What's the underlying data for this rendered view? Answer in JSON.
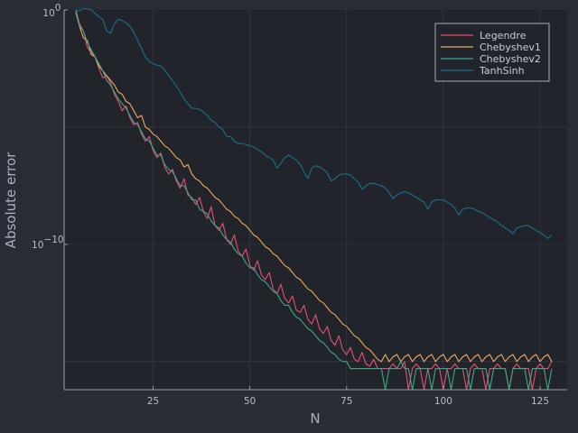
{
  "chart_data": {
    "type": "line",
    "xlabel": "N",
    "ylabel": "Absolute error",
    "xlim": [
      2,
      132
    ],
    "y_scale": "log10",
    "ylim_log10": [
      -16.2,
      0
    ],
    "x_ticks": [
      25,
      50,
      75,
      100,
      125
    ],
    "x_tick_labels": [
      "25",
      "50",
      "75",
      "100",
      "125"
    ],
    "y_ticks_log10": [
      0,
      -10
    ],
    "y_tick_labels": [
      {
        "base": "10",
        "exp": "0"
      },
      {
        "base": "10",
        "exp": "−10"
      }
    ],
    "grid": true,
    "legend_position": "top-right",
    "colors": {
      "background": "#282c34",
      "plot_area": "#21242b",
      "axis": "#9aa0a8",
      "legend_border": "#a8adb5"
    },
    "series": [
      {
        "name": "Legendre",
        "color": "#e8506e",
        "note": "log10 of absolute error",
        "x": [
          5,
          6,
          7,
          8,
          9,
          10,
          11,
          12,
          13,
          14,
          15,
          16,
          17,
          18,
          19,
          20,
          21,
          22,
          23,
          24,
          25,
          26,
          27,
          28,
          29,
          30,
          31,
          32,
          33,
          34,
          35,
          36,
          37,
          38,
          39,
          40,
          41,
          42,
          43,
          44,
          45,
          46,
          47,
          48,
          49,
          50,
          51,
          52,
          53,
          54,
          55,
          56,
          57,
          58,
          59,
          60,
          61,
          62,
          63,
          64,
          65,
          66,
          67,
          68,
          69,
          70,
          71,
          72,
          73,
          74,
          75,
          76,
          77,
          78,
          79,
          80,
          81,
          82,
          83,
          84,
          85,
          86,
          87,
          88,
          89,
          90,
          91,
          92,
          93,
          94,
          95,
          96,
          97,
          98,
          99,
          100,
          101,
          102,
          103,
          104,
          105,
          106,
          107,
          108,
          109,
          110,
          111,
          112,
          113,
          114,
          115,
          116,
          117,
          118,
          119,
          120,
          121,
          122,
          123,
          124,
          125,
          126,
          127,
          128
        ],
        "y": [
          0.0,
          -0.6,
          -0.9,
          -1.6,
          -1.8,
          -2.0,
          -2.5,
          -2.9,
          -2.8,
          -3.1,
          -3.6,
          -3.9,
          -4.3,
          -4.1,
          -4.6,
          -4.9,
          -4.8,
          -5.3,
          -5.6,
          -5.4,
          -6.0,
          -6.3,
          -6.1,
          -6.7,
          -7.0,
          -6.8,
          -7.3,
          -7.6,
          -7.2,
          -7.9,
          -8.0,
          -8.3,
          -8.0,
          -8.6,
          -8.9,
          -8.4,
          -9.2,
          -9.4,
          -9.1,
          -9.8,
          -10.0,
          -9.6,
          -10.3,
          -10.5,
          -10.2,
          -10.9,
          -11.1,
          -10.7,
          -11.3,
          -11.5,
          -11.2,
          -11.9,
          -12.1,
          -11.7,
          -12.3,
          -12.5,
          -12.2,
          -12.8,
          -12.9,
          -12.6,
          -13.2,
          -13.4,
          -13.0,
          -13.6,
          -13.8,
          -13.5,
          -14.1,
          -14.3,
          -13.9,
          -14.5,
          -14.7,
          -14.4,
          -14.9,
          -15.0,
          -14.6,
          -15.1,
          -15.2,
          -14.9,
          -15.3,
          -15.3,
          -15.3,
          -15.3,
          -15.1,
          -15.3,
          -15.3,
          -15.0,
          -16.2,
          -15.3,
          -15.1,
          -15.3,
          -16.2,
          -15.3,
          -15.3,
          -15.1,
          -15.3,
          -16.2,
          -15.3,
          -15.3,
          -15.1,
          -15.3,
          -15.3,
          -16.2,
          -15.3,
          -15.1,
          -15.3,
          -15.3,
          -16.2,
          -15.3,
          -15.3,
          -15.1,
          -15.3,
          -15.3,
          -16.2,
          -15.3,
          -15.1,
          -15.3,
          -15.3,
          -15.3,
          -16.2,
          -15.3,
          -15.1,
          -15.3,
          -15.3,
          -15.0
        ]
      },
      {
        "name": "Chebyshev1",
        "color": "#f0a860",
        "note": "log10 of absolute error",
        "x": [
          5,
          6,
          7,
          8,
          9,
          10,
          11,
          12,
          13,
          14,
          15,
          16,
          17,
          18,
          19,
          20,
          21,
          22,
          23,
          24,
          25,
          26,
          27,
          28,
          29,
          30,
          31,
          32,
          33,
          34,
          35,
          36,
          37,
          38,
          39,
          40,
          41,
          42,
          43,
          44,
          45,
          46,
          47,
          48,
          49,
          50,
          51,
          52,
          53,
          54,
          55,
          56,
          57,
          58,
          59,
          60,
          61,
          62,
          63,
          64,
          65,
          66,
          67,
          68,
          69,
          70,
          71,
          72,
          73,
          74,
          75,
          76,
          77,
          78,
          79,
          80,
          81,
          82,
          83,
          84,
          85,
          86,
          87,
          88,
          89,
          90,
          91,
          92,
          93,
          94,
          95,
          96,
          97,
          98,
          99,
          100,
          101,
          102,
          103,
          104,
          105,
          106,
          107,
          108,
          109,
          110,
          111,
          112,
          113,
          114,
          115,
          116,
          117,
          118,
          119,
          120,
          121,
          122,
          123,
          124,
          125,
          126,
          127,
          128
        ],
        "y": [
          -0.1,
          -0.7,
          -1.2,
          -1.3,
          -1.9,
          -2.0,
          -2.4,
          -2.6,
          -2.8,
          -3.0,
          -3.2,
          -3.5,
          -3.6,
          -3.9,
          -4.0,
          -4.3,
          -4.6,
          -4.5,
          -5.0,
          -5.1,
          -5.3,
          -5.4,
          -5.6,
          -5.8,
          -5.9,
          -6.1,
          -6.3,
          -6.4,
          -6.7,
          -6.6,
          -7.0,
          -7.2,
          -7.3,
          -7.5,
          -7.6,
          -7.8,
          -8.0,
          -8.1,
          -8.3,
          -8.5,
          -8.6,
          -8.8,
          -8.9,
          -9.1,
          -9.2,
          -9.4,
          -9.6,
          -9.7,
          -9.9,
          -10.1,
          -10.2,
          -10.4,
          -10.5,
          -10.7,
          -10.9,
          -11.0,
          -11.2,
          -11.4,
          -11.5,
          -11.7,
          -11.9,
          -12.0,
          -12.2,
          -12.4,
          -12.5,
          -12.7,
          -12.9,
          -13.0,
          -13.2,
          -13.4,
          -13.5,
          -13.7,
          -13.9,
          -14.0,
          -14.2,
          -14.4,
          -14.5,
          -14.7,
          -14.9,
          -15.0,
          -14.7,
          -15.0,
          -14.8,
          -14.7,
          -15.0,
          -14.8,
          -14.7,
          -15.0,
          -14.8,
          -14.7,
          -15.0,
          -14.8,
          -14.7,
          -15.0,
          -14.8,
          -14.7,
          -15.0,
          -14.8,
          -14.7,
          -15.0,
          -14.8,
          -14.7,
          -15.0,
          -14.8,
          -14.7,
          -15.0,
          -14.8,
          -14.7,
          -15.0,
          -14.8,
          -14.7,
          -15.0,
          -14.8,
          -14.7,
          -15.0,
          -14.8,
          -14.7,
          -15.0,
          -14.8,
          -14.7,
          -15.0,
          -14.8,
          -14.7,
          -15.0
        ]
      },
      {
        "name": "Chebyshev2",
        "color": "#3da88a",
        "note": "log10 of absolute error",
        "x": [
          5,
          6,
          7,
          8,
          9,
          10,
          11,
          12,
          13,
          14,
          15,
          16,
          17,
          18,
          19,
          20,
          21,
          22,
          23,
          24,
          25,
          26,
          27,
          28,
          29,
          30,
          31,
          32,
          33,
          34,
          35,
          36,
          37,
          38,
          39,
          40,
          41,
          42,
          43,
          44,
          45,
          46,
          47,
          48,
          49,
          50,
          51,
          52,
          53,
          54,
          55,
          56,
          57,
          58,
          59,
          60,
          61,
          62,
          63,
          64,
          65,
          66,
          67,
          68,
          69,
          70,
          71,
          72,
          73,
          74,
          75,
          76,
          77,
          78,
          79,
          80,
          81,
          82,
          83,
          84,
          85,
          86,
          87,
          88,
          89,
          90,
          91,
          92,
          93,
          94,
          95,
          96,
          97,
          98,
          99,
          100,
          101,
          102,
          103,
          104,
          105,
          106,
          107,
          108,
          109,
          110,
          111,
          112,
          113,
          114,
          115,
          116,
          117,
          118,
          119,
          120,
          121,
          122,
          123,
          124,
          125,
          126,
          127,
          128
        ],
        "y": [
          0.0,
          -0.7,
          -0.9,
          -1.4,
          -1.7,
          -2.0,
          -2.3,
          -2.6,
          -3.0,
          -3.2,
          -3.5,
          -3.8,
          -4.0,
          -4.2,
          -4.5,
          -4.8,
          -4.9,
          -5.2,
          -5.5,
          -5.6,
          -5.9,
          -6.2,
          -6.2,
          -6.6,
          -6.8,
          -6.9,
          -7.2,
          -7.5,
          -7.5,
          -7.8,
          -8.1,
          -8.1,
          -8.5,
          -8.6,
          -8.7,
          -9.0,
          -9.2,
          -9.3,
          -9.6,
          -9.8,
          -9.9,
          -10.2,
          -10.4,
          -10.5,
          -10.8,
          -11.0,
          -11.0,
          -11.3,
          -11.5,
          -11.6,
          -11.8,
          -12.0,
          -12.1,
          -12.4,
          -12.6,
          -12.6,
          -12.9,
          -13.1,
          -13.2,
          -13.4,
          -13.6,
          -13.7,
          -13.9,
          -14.1,
          -14.2,
          -14.4,
          -14.6,
          -14.7,
          -14.9,
          -15.0,
          -15.0,
          -15.3,
          -15.3,
          -15.3,
          -15.3,
          -15.3,
          -15.3,
          -15.3,
          -15.3,
          -15.3,
          -16.2,
          -15.3,
          -15.3,
          -15.3,
          -15.0,
          -15.3,
          -15.3,
          -16.2,
          -15.3,
          -15.3,
          -15.3,
          -15.3,
          -16.2,
          -15.3,
          -15.3,
          -15.3,
          -15.3,
          -16.2,
          -15.3,
          -15.3,
          -15.3,
          -15.3,
          -16.2,
          -15.3,
          -15.3,
          -15.3,
          -15.3,
          -16.2,
          -15.3,
          -15.3,
          -15.3,
          -15.3,
          -16.2,
          -15.3,
          -15.3,
          -15.3,
          -15.3,
          -16.2,
          -15.3,
          -15.3,
          -15.3,
          -15.3,
          -16.2,
          -15.3
        ]
      },
      {
        "name": "TanhSinh",
        "color": "#1b6f8e",
        "note": "log10 of absolute error",
        "x": [
          5,
          6,
          7,
          8,
          9,
          10,
          11,
          12,
          13,
          14,
          15,
          16,
          17,
          18,
          19,
          20,
          21,
          22,
          23,
          24,
          25,
          26,
          27,
          28,
          29,
          30,
          31,
          32,
          33,
          34,
          35,
          36,
          37,
          38,
          39,
          40,
          41,
          42,
          43,
          44,
          45,
          46,
          47,
          48,
          49,
          50,
          51,
          52,
          53,
          54,
          55,
          56,
          57,
          58,
          59,
          60,
          61,
          62,
          63,
          64,
          65,
          66,
          67,
          68,
          69,
          70,
          71,
          72,
          73,
          74,
          75,
          76,
          77,
          78,
          79,
          80,
          81,
          82,
          83,
          84,
          85,
          86,
          87,
          88,
          89,
          90,
          91,
          92,
          93,
          94,
          95,
          96,
          97,
          98,
          99,
          100,
          101,
          102,
          103,
          104,
          105,
          106,
          107,
          108,
          109,
          110,
          111,
          112,
          113,
          114,
          115,
          116,
          117,
          118,
          119,
          120,
          121,
          122,
          123,
          124,
          125,
          126,
          127,
          128
        ],
        "y": [
          0.0,
          -0.05,
          0.05,
          0.05,
          0.0,
          -0.15,
          -0.3,
          -0.4,
          -0.9,
          -1.0,
          -0.6,
          -0.4,
          -0.45,
          -0.55,
          -0.7,
          -0.95,
          -1.3,
          -1.65,
          -2.0,
          -2.2,
          -2.3,
          -2.35,
          -2.4,
          -2.55,
          -2.8,
          -3.0,
          -3.25,
          -3.5,
          -3.8,
          -4.0,
          -4.2,
          -4.2,
          -4.25,
          -4.35,
          -4.5,
          -4.7,
          -4.8,
          -5.0,
          -5.1,
          -5.4,
          -5.4,
          -5.6,
          -5.7,
          -5.7,
          -5.75,
          -5.8,
          -5.85,
          -5.95,
          -6.05,
          -6.2,
          -6.3,
          -6.4,
          -6.75,
          -6.55,
          -6.3,
          -6.2,
          -6.3,
          -6.4,
          -6.6,
          -6.9,
          -7.2,
          -6.75,
          -6.65,
          -6.7,
          -6.8,
          -6.95,
          -7.3,
          -7.2,
          -7.05,
          -7.0,
          -7.0,
          -7.05,
          -7.2,
          -7.35,
          -7.65,
          -7.5,
          -7.4,
          -7.4,
          -7.45,
          -7.5,
          -7.6,
          -7.8,
          -8.05,
          -7.9,
          -7.8,
          -7.75,
          -7.8,
          -7.9,
          -8.0,
          -8.1,
          -8.2,
          -8.5,
          -8.2,
          -8.1,
          -8.1,
          -8.1,
          -8.2,
          -8.3,
          -8.45,
          -8.75,
          -8.5,
          -8.45,
          -8.45,
          -8.5,
          -8.6,
          -8.65,
          -8.75,
          -8.85,
          -8.95,
          -9.05,
          -9.2,
          -9.3,
          -9.4,
          -9.55,
          -9.3,
          -9.25,
          -9.2,
          -9.2,
          -9.3,
          -9.4,
          -9.5,
          -9.6,
          -9.75,
          -9.6
        ]
      }
    ]
  }
}
